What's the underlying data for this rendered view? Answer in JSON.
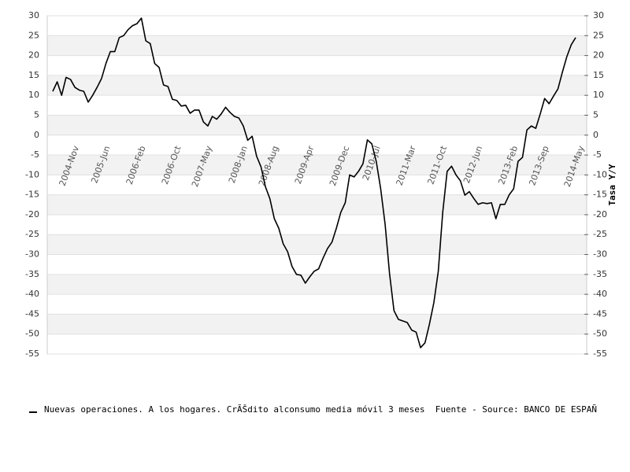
{
  "chart_data": {
    "type": "line",
    "categories": [
      null,
      null,
      null,
      null,
      "2004-Nov",
      null,
      null,
      null,
      null,
      null,
      null,
      "2005-Jun",
      null,
      null,
      null,
      null,
      null,
      null,
      null,
      "2006-Feb",
      null,
      null,
      null,
      null,
      null,
      null,
      null,
      "2006-Oct",
      null,
      null,
      null,
      null,
      null,
      null,
      "2007-May",
      null,
      null,
      null,
      null,
      null,
      null,
      null,
      "2008-Jan",
      null,
      null,
      null,
      null,
      null,
      null,
      "2008-Aug",
      null,
      null,
      null,
      null,
      null,
      null,
      null,
      "2009-Apr",
      null,
      null,
      null,
      null,
      null,
      null,
      null,
      "2009-Dec",
      null,
      null,
      null,
      null,
      null,
      null,
      "2010-Jul",
      null,
      null,
      null,
      null,
      null,
      null,
      null,
      "2011-Mar",
      null,
      null,
      null,
      null,
      null,
      null,
      "2011-Oct",
      null,
      null,
      null,
      null,
      null,
      null,
      null,
      "2012-Jun",
      null,
      null,
      null,
      null,
      null,
      null,
      null,
      "2013-Feb",
      null,
      null,
      null,
      null,
      null,
      null,
      "2013-Sep",
      null,
      null,
      null,
      null,
      null,
      null,
      null,
      "2014-May"
    ],
    "series": [
      {
        "name": "Nuevas operaciones. A los hogares. CrÃŠdito alconsumo media móvil 3 meses  Fuente - Source: BANCO DE ESPAÑ",
        "color": "#000000",
        "values": [
          11,
          13.4,
          10,
          14.5,
          14,
          12,
          11.3,
          11,
          8.3,
          10,
          12,
          14.2,
          18,
          21,
          21,
          24.5,
          25,
          26.5,
          27.5,
          28,
          29.4,
          23.7,
          23,
          18,
          17,
          12.6,
          12.2,
          9,
          8.7,
          7.3,
          7.5,
          5.5,
          6.3,
          6.3,
          3.3,
          2.3,
          4.7,
          4,
          5.3,
          7,
          5.7,
          4.7,
          4.3,
          2.3,
          -1.3,
          -0.3,
          -5.3,
          -8,
          -13,
          -16,
          -21,
          -23.4,
          -27.3,
          -29.3,
          -33,
          -35,
          -35.2,
          -37.2,
          -35.6,
          -34.2,
          -33.6,
          -30.9,
          -28.5,
          -26.9,
          -23.4,
          -19.4,
          -17,
          -10,
          -10.5,
          -9.1,
          -7.2,
          -1.2,
          -2.2,
          -6.6,
          -13.5,
          -22.4,
          -34.8,
          -44.1,
          -46.3,
          -46.7,
          -47.1,
          -49,
          -49.5,
          -53.4,
          -52.2,
          -47.5,
          -42.1,
          -34.2,
          -19.4,
          -9.1,
          -7.8,
          -10,
          -11.5,
          -15.1,
          -14.2,
          -15.9,
          -17.4,
          -17,
          -17.2,
          -17,
          -21,
          -17.4,
          -17.4,
          -15,
          -13.5,
          -6.6,
          -5.6,
          1.3,
          2.3,
          1.7,
          5.3,
          9.2,
          7.9,
          9.8,
          11.6,
          15.8,
          19.7,
          22.7,
          24.5
        ]
      }
    ],
    "ylim": [
      -55,
      30
    ],
    "yticks": [
      30,
      25,
      20,
      15,
      10,
      5,
      0,
      -5,
      -10,
      -15,
      -20,
      -25,
      -30,
      -35,
      -40,
      -45,
      -50,
      -55
    ],
    "y2lim": [
      -55,
      30
    ],
    "y2ticks": [
      30,
      25,
      20,
      15,
      10,
      5,
      0,
      -5,
      -10,
      -15,
      -20,
      -25,
      -30,
      -35,
      -40,
      -45,
      -50,
      -55
    ],
    "y2label": "Tasa Y/Y",
    "grid": true
  }
}
